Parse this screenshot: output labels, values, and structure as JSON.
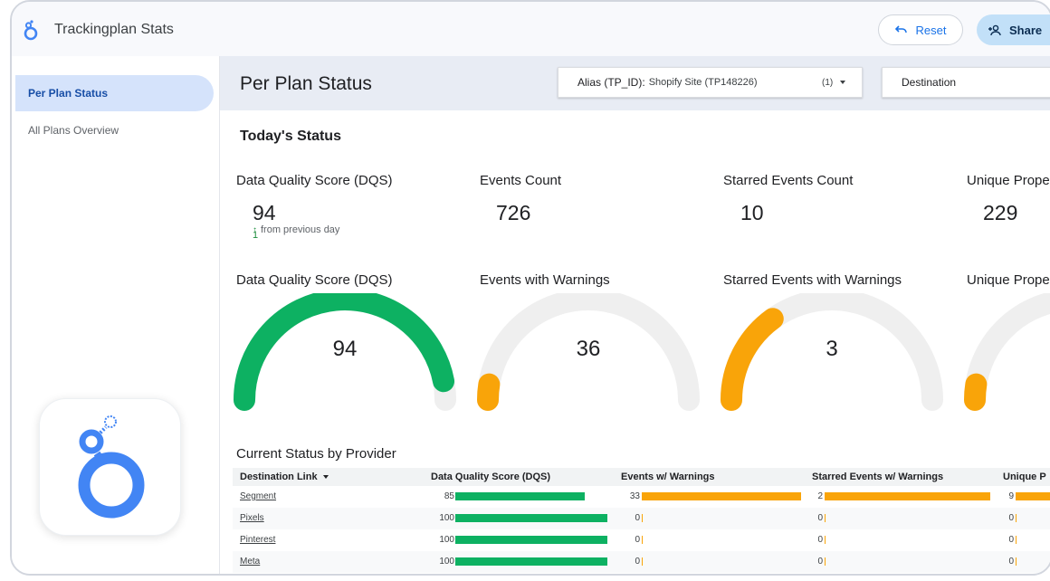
{
  "app": {
    "title": "Trackingplan Stats"
  },
  "topbar": {
    "reset_label": "Reset",
    "share_label": "Share"
  },
  "sidebar": {
    "items": [
      {
        "label": "Per Plan Status"
      },
      {
        "label": "All Plans Overview"
      }
    ]
  },
  "header": {
    "title": "Per Plan Status",
    "alias_filter": {
      "label": "Alias (TP_ID):",
      "value": "Shopify Site (TP148226)",
      "count": "(1)"
    },
    "destination_filter": {
      "label": "Destination"
    }
  },
  "today": {
    "title": "Today's Status",
    "kpis": [
      {
        "label": "Data Quality Score (DQS)",
        "value": "94"
      },
      {
        "label": "Events Count",
        "value": "726"
      },
      {
        "label": "Starred Events Count",
        "value": "10"
      },
      {
        "label": "Unique Prope",
        "value": "229"
      }
    ],
    "delta": {
      "arrow": "↑",
      "value": "1",
      "text": "from previous day"
    }
  },
  "gauges": [
    {
      "label": "Data Quality Score (DQS)",
      "value": "94",
      "fraction": 0.94,
      "color": "#0db162"
    },
    {
      "label": "Events with Warnings",
      "value": "36",
      "fraction": 0.05,
      "color": "#f9a409"
    },
    {
      "label": "Starred Events with Warnings",
      "value": "3",
      "fraction": 0.3,
      "color": "#f9a409"
    },
    {
      "label": "Unique Prope",
      "value": "",
      "fraction": 0.05,
      "color": "#f9a409"
    }
  ],
  "provider_table": {
    "title": "Current Status by Provider",
    "headers": [
      "Destination Link",
      "Data Quality Score (DQS)",
      "Events w/ Warnings",
      "Starred Events w/ Warnings",
      "Unique P"
    ],
    "rows": [
      {
        "name": "Segment",
        "dqs": "85",
        "dqs_frac": 0.85,
        "ew": "33",
        "ew_frac": 1.0,
        "sew": "2",
        "sew_frac": 1.0,
        "up": "9"
      },
      {
        "name": "Pixels",
        "dqs": "100",
        "dqs_frac": 1.0,
        "ew": "0",
        "ew_frac": 0,
        "sew": "0",
        "sew_frac": 0,
        "up": "0"
      },
      {
        "name": "Pinterest",
        "dqs": "100",
        "dqs_frac": 1.0,
        "ew": "0",
        "ew_frac": 0,
        "sew": "0",
        "sew_frac": 0,
        "up": "0"
      },
      {
        "name": "Meta",
        "dqs": "100",
        "dqs_frac": 1.0,
        "ew": "0",
        "ew_frac": 0,
        "sew": "0",
        "sew_frac": 0,
        "up": "0"
      }
    ]
  },
  "colors": {
    "accent": "#1a73e8",
    "green": "#0db162",
    "orange": "#f9a409",
    "track": "#efefef"
  }
}
